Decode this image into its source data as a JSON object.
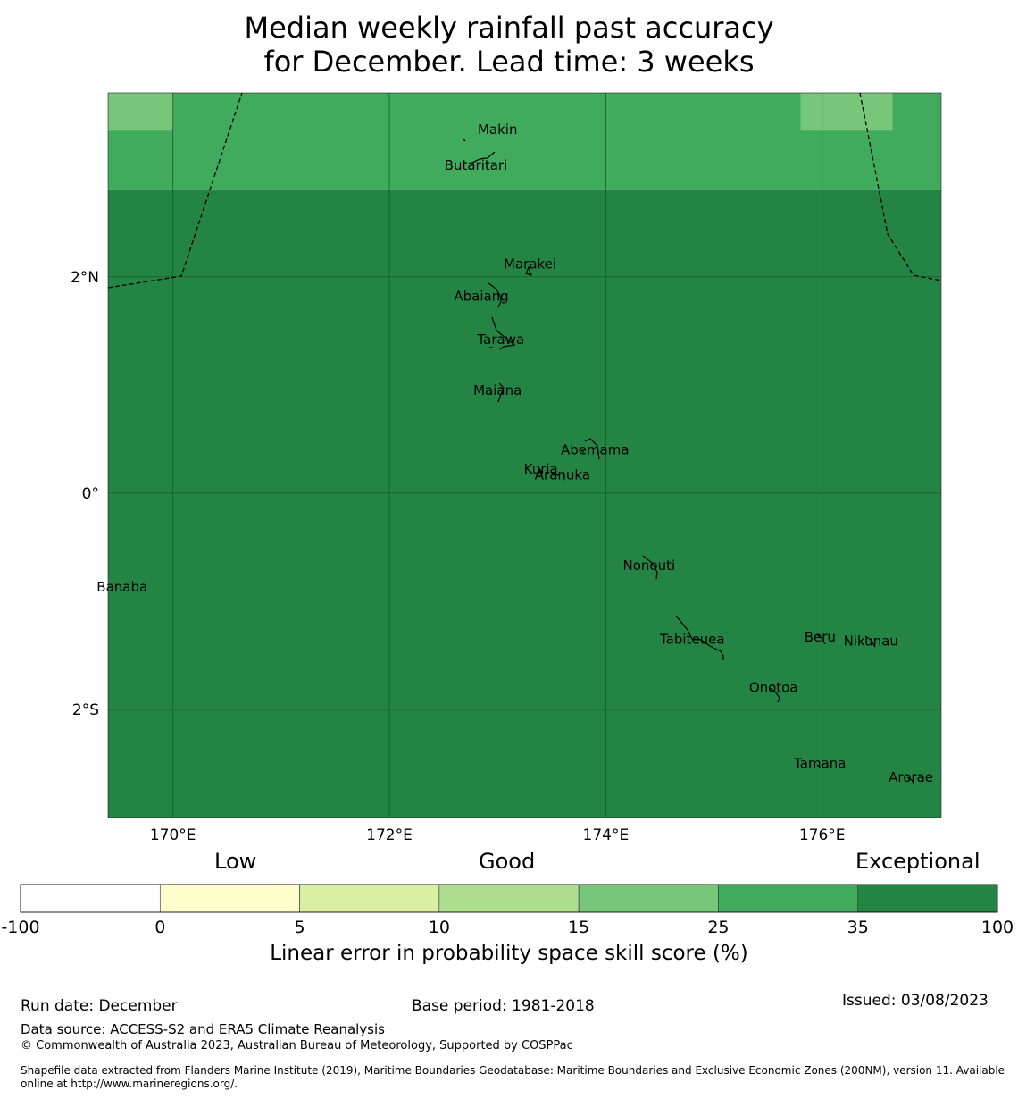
{
  "title": {
    "line1": "Median weekly rainfall past accuracy",
    "line2": "for December. Lead time: 3 weeks"
  },
  "map": {
    "lon_range": [
      169.4,
      177.1
    ],
    "lat_range": [
      -3.0,
      3.7
    ],
    "lon_ticks": [
      {
        "value": 170,
        "label": "170°E"
      },
      {
        "value": 172,
        "label": "172°E"
      },
      {
        "value": 174,
        "label": "174°E"
      },
      {
        "value": 176,
        "label": "176°E"
      }
    ],
    "lat_ticks": [
      {
        "value": 2,
        "label": "2°N"
      },
      {
        "value": 0,
        "label": "0°"
      },
      {
        "value": -2,
        "label": "2°S"
      }
    ],
    "skill_cells": [
      {
        "lon0": 169.4,
        "lon1": 177.1,
        "lat0": -3.0,
        "lat1": 2.8,
        "category": 35
      },
      {
        "lon0": 169.4,
        "lon1": 177.1,
        "lat0": 2.8,
        "lat1": 3.7,
        "category": 25
      },
      {
        "lon0": 169.4,
        "lon1": 170.0,
        "lat0": 3.35,
        "lat1": 3.7,
        "category": 15
      },
      {
        "lon0": 175.8,
        "lon1": 176.65,
        "lat0": 3.35,
        "lat1": 3.7,
        "category": 15
      }
    ],
    "islands": [
      {
        "name": "Makin",
        "lon": 173.0,
        "lat": 3.36
      },
      {
        "name": "Butaritari",
        "lon": 172.8,
        "lat": 3.03
      },
      {
        "name": "Marakei",
        "lon": 173.3,
        "lat": 2.12
      },
      {
        "name": "Abaiang",
        "lon": 172.85,
        "lat": 1.82
      },
      {
        "name": "Tarawa",
        "lon": 173.03,
        "lat": 1.42
      },
      {
        "name": "Maiana",
        "lon": 173.0,
        "lat": 0.95
      },
      {
        "name": "Abemama",
        "lon": 173.9,
        "lat": 0.4
      },
      {
        "name": "Kuria",
        "lon": 173.4,
        "lat": 0.22
      },
      {
        "name": "Aranuka",
        "lon": 173.6,
        "lat": 0.17
      },
      {
        "name": "Nonouti",
        "lon": 174.4,
        "lat": -0.67
      },
      {
        "name": "Banaba",
        "lon": 169.53,
        "lat": -0.87
      },
      {
        "name": "Tabiteuea",
        "lon": 174.8,
        "lat": -1.35
      },
      {
        "name": "Beru",
        "lon": 175.98,
        "lat": -1.33
      },
      {
        "name": "Nikunau",
        "lon": 176.45,
        "lat": -1.37
      },
      {
        "name": "Onotoa",
        "lon": 175.55,
        "lat": -1.8
      },
      {
        "name": "Tamana",
        "lon": 175.98,
        "lat": -2.5
      },
      {
        "name": "Arorae",
        "lon": 176.82,
        "lat": -2.63
      }
    ]
  },
  "colorbar": {
    "category_labels": [
      "Low",
      "Good",
      "Exceptional"
    ],
    "boundaries": [
      "-100",
      "0",
      "5",
      "10",
      "15",
      "25",
      "35",
      "100"
    ],
    "colors": [
      "#ffffff",
      "#ffffcc",
      "#d9f0a3",
      "#addd8e",
      "#78c679",
      "#41ab5d",
      "#238443"
    ],
    "title": "Linear error in probability space skill score (%)"
  },
  "footer": {
    "run_date": "Run date: December",
    "base_period": "Base period: 1981-2018",
    "issued": "Issued: 03/08/2023",
    "data_source": "Data source: ACCESS-S2 and ERA5 Climate Reanalysis",
    "copyright": "© Commonwealth of Australia 2023, Australian Bureau of Meteorology, Supported by COSPPac",
    "shapefile": "Shapefile data extracted from Flanders Marine Institute (2019), Maritime Boundaries Geodatabase: Maritime Boundaries and Exclusive Economic Zones (200NM), version 11. Available online at http://www.marineregions.org/."
  }
}
